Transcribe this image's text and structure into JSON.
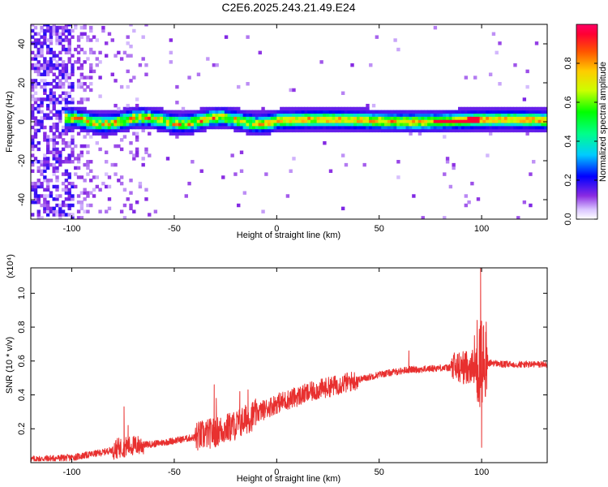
{
  "title": "C2E6.2025.243.21.49.E24",
  "chart_data": [
    {
      "type": "heatmap",
      "xlabel": "Height of straight line (km)",
      "ylabel": "Frequency (Hz)",
      "xlim": [
        -120,
        132
      ],
      "ylim": [
        -50,
        50
      ],
      "xticks": [
        -100,
        -50,
        0,
        50,
        100
      ],
      "yticks": [
        -40,
        -20,
        0,
        20,
        40
      ],
      "signal_band_center_hz": 0,
      "signal_band_halfwidth_hz": 4,
      "colorbar": {
        "label": "Normalized spectral amplitude",
        "range": [
          0,
          1
        ],
        "ticks": [
          0.0,
          0.2,
          0.4,
          0.6,
          0.8
        ]
      }
    },
    {
      "type": "line",
      "xlabel": "Height of straight line (km)",
      "ylabel": "SNR (10 * v/v)",
      "scale_label": "(x10⁴)",
      "xlim": [
        -120,
        132
      ],
      "ylim": [
        0,
        1.15
      ],
      "xticks": [
        -100,
        -50,
        0,
        50,
        100
      ],
      "yticks": [
        0.2,
        0.4,
        0.6,
        0.8,
        1.0
      ],
      "series_color": "#e8302f",
      "trend": {
        "x": [
          -120,
          -100,
          -85,
          -76,
          -70,
          -60,
          -50,
          -40,
          -30,
          -20,
          -10,
          0,
          10,
          20,
          30,
          40,
          50,
          60,
          65,
          70,
          80,
          90,
          95,
          100,
          105,
          110,
          120,
          132
        ],
        "y": [
          0.02,
          0.03,
          0.06,
          0.09,
          0.1,
          0.11,
          0.13,
          0.15,
          0.18,
          0.22,
          0.29,
          0.35,
          0.39,
          0.43,
          0.46,
          0.49,
          0.52,
          0.54,
          0.55,
          0.55,
          0.56,
          0.56,
          0.57,
          0.57,
          0.59,
          0.58,
          0.58,
          0.58
        ]
      },
      "spikes": [
        {
          "x": -74.5,
          "y": 0.33
        },
        {
          "x": -72.5,
          "y": 0.22
        },
        {
          "x": -30.5,
          "y": 0.46
        },
        {
          "x": -29.5,
          "y": 0.38
        },
        {
          "x": -18.0,
          "y": 0.42
        },
        {
          "x": -14.0,
          "y": 0.43
        },
        {
          "x": 64.5,
          "y": 0.66
        },
        {
          "x": 96.5,
          "y": 0.75
        },
        {
          "x": 99.5,
          "y": 1.15
        },
        {
          "x": 100.0,
          "y": 0.09
        },
        {
          "x": 101.0,
          "y": 0.81
        },
        {
          "x": 102.0,
          "y": 0.77
        }
      ]
    }
  ]
}
